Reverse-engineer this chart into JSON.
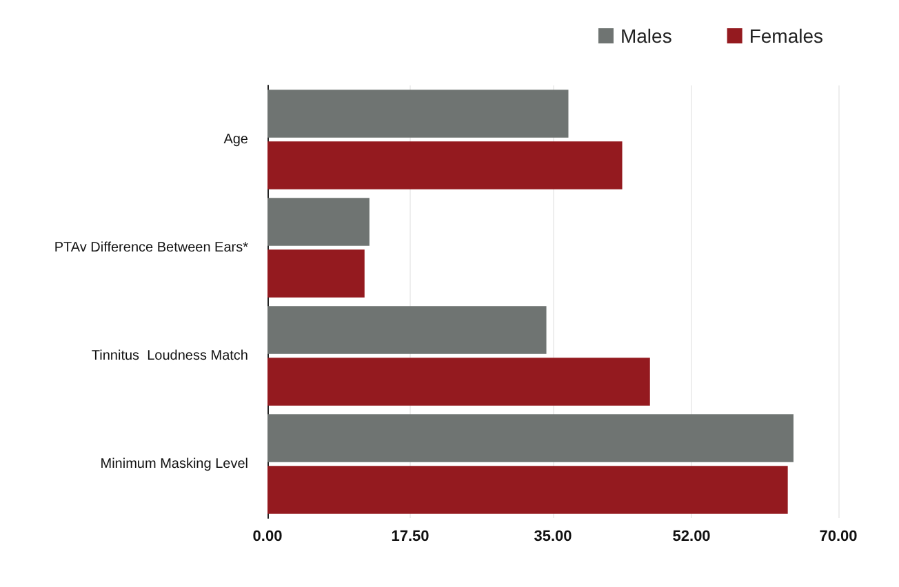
{
  "chart_data": {
    "type": "bar",
    "orientation": "horizontal",
    "categories": [
      "Age",
      "PTAv Difference Between Ears*",
      "Tinnitus  Loudness Match",
      "Minimum Masking Level"
    ],
    "series": [
      {
        "name": "Males",
        "color": "#6f7472",
        "values": [
          36.9,
          12.5,
          34.2,
          64.5
        ]
      },
      {
        "name": "Females",
        "color": "#941a1f",
        "values": [
          43.5,
          11.9,
          46.9,
          63.8
        ]
      }
    ],
    "xlim": [
      0,
      70
    ],
    "xticks": [
      {
        "value": 0,
        "label": "0.00"
      },
      {
        "value": 17.5,
        "label": "17.50"
      },
      {
        "value": 35,
        "label": "35.00"
      },
      {
        "value": 52,
        "label": "52.00"
      },
      {
        "value": 70,
        "label": "70.00"
      }
    ],
    "grid": "x",
    "legend": "top right"
  }
}
